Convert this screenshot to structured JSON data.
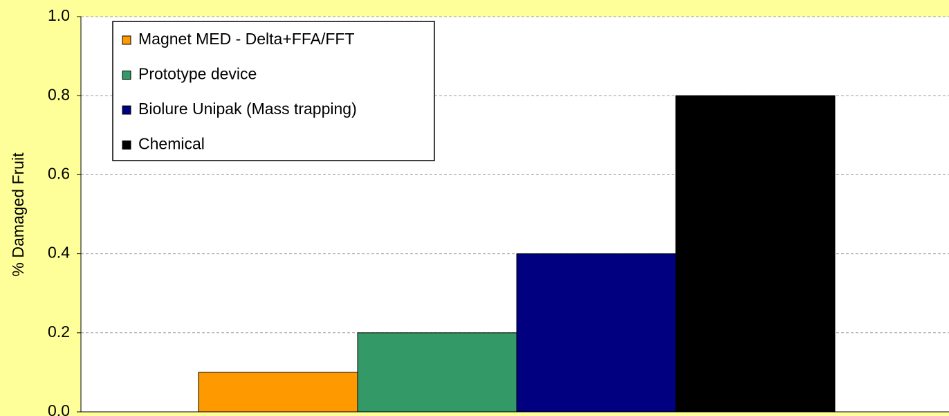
{
  "chart_data": {
    "type": "bar",
    "y_label": "% Damaged Fruit",
    "categories": [
      null
    ],
    "series": [
      {
        "name": "Magnet MED - Delta+FFA/FFT",
        "color": "#ff9900",
        "values": [
          0.1
        ]
      },
      {
        "name": "Prototype device",
        "color": "#339966",
        "values": [
          0.2
        ]
      },
      {
        "name": "Biolure Unipak (Mass trapping)",
        "color": "#000080",
        "values": [
          0.4
        ]
      },
      {
        "name": "Chemical",
        "color": "#000000",
        "values": [
          0.8
        ]
      }
    ],
    "ylim": [
      0,
      1
    ],
    "yticks": [
      {
        "value": 0,
        "label": "0.0"
      },
      0.2,
      0.4,
      0.6,
      0.8,
      {
        "value": 1,
        "label": "1.0"
      }
    ],
    "grid": true,
    "legend": "top-left"
  }
}
